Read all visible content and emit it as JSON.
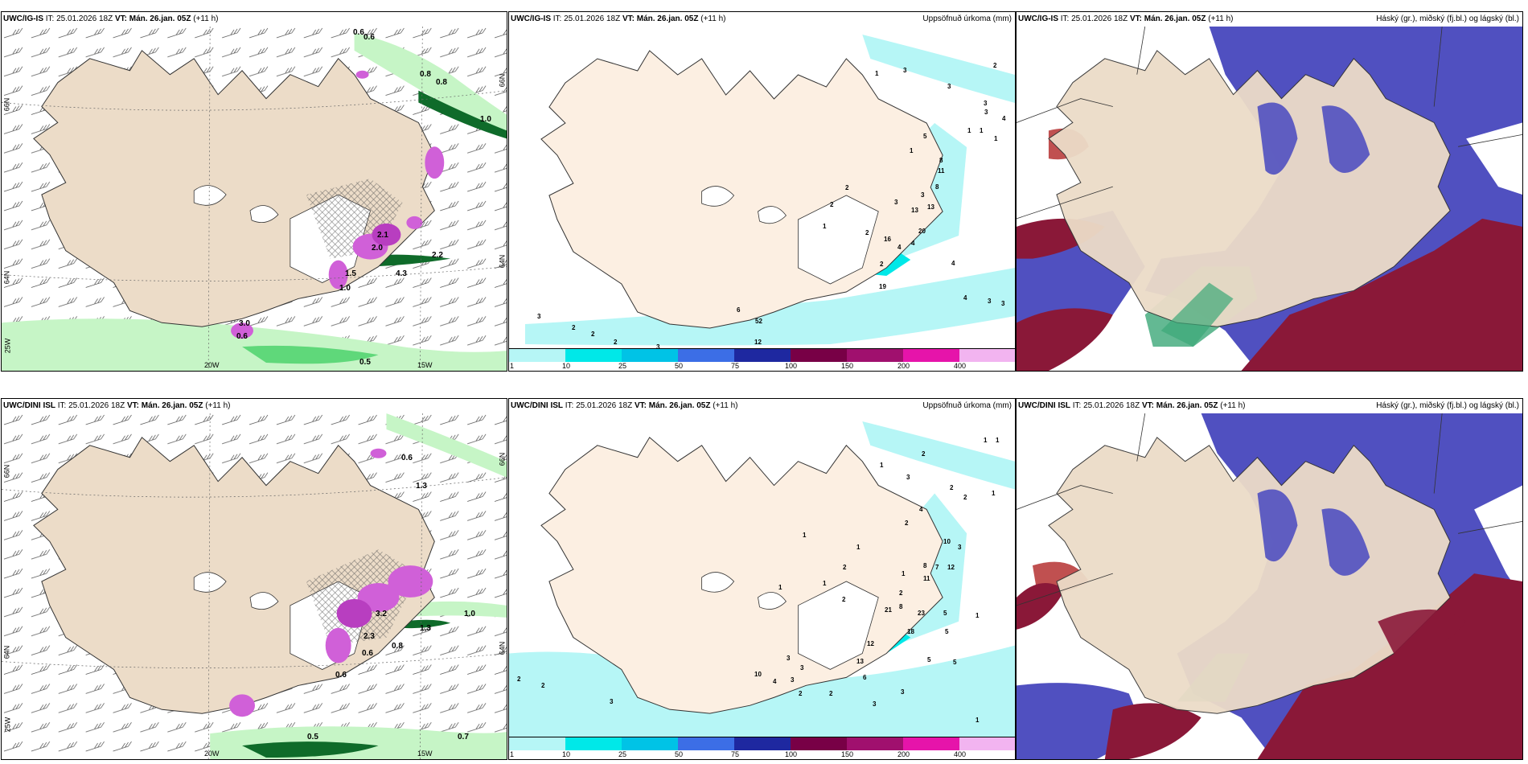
{
  "rows": [
    {
      "model": "UWC/IG-IS",
      "it_label": "IT:",
      "it_value": "25.01.2026 18Z",
      "vt_label": "VT:",
      "vt_value": "Mán. 26.jan. 05Z",
      "lead": "(+11 h)",
      "wind_panel": {
        "lon_labels": [
          "20W",
          "15W"
        ],
        "lat_labels": [
          "66N",
          "64N",
          "25W",
          "66N",
          "64N"
        ],
        "contour_labels": [
          "0.6",
          "0.6",
          "0.8",
          "0.8",
          "1.0",
          "2.1",
          "2.0",
          "4.3",
          "2.2",
          "1.0",
          "1.5",
          "3.0",
          "0.6",
          "0.5"
        ]
      },
      "precip_panel": {
        "title": "Uppsöfnuð úrkoma (mm)",
        "labels": [
          "1",
          "3",
          "3",
          "2",
          "3",
          "4",
          "3",
          "1",
          "1",
          "1",
          "5",
          "1",
          "8",
          "11",
          "2",
          "8",
          "3",
          "13",
          "13",
          "3",
          "20",
          "2",
          "1",
          "4",
          "2",
          "16",
          "4",
          "2",
          "19",
          "4",
          "3",
          "3",
          "4",
          "3",
          "2",
          "2",
          "2",
          "3",
          "6",
          "52",
          "12",
          "3"
        ]
      },
      "cloud_panel": {
        "title": "Háský (gr.), miðský (fj.bl.) og lágský (bl.)"
      }
    },
    {
      "model": "UWC/DINI ISL",
      "it_label": "IT:",
      "it_value": "25.01.2026 18Z",
      "vt_label": "VT:",
      "vt_value": "Mán. 26.jan. 05Z",
      "lead": "(+11 h)",
      "wind_panel": {
        "lon_labels": [
          "20W",
          "15W"
        ],
        "lat_labels": [
          "66N",
          "64N",
          "25W",
          "66N",
          "64N"
        ],
        "contour_labels": [
          "0.6",
          "1.3",
          "3.2",
          "2.3",
          "1.3",
          "0.8",
          "1.0",
          "0.6",
          "0.6",
          "0.5",
          "0.7"
        ]
      },
      "precip_panel": {
        "title": "Uppsöfnuð úrkoma (mm)",
        "labels": [
          "1",
          "1",
          "2",
          "1",
          "3",
          "2",
          "2",
          "1",
          "4",
          "2",
          "1",
          "10",
          "3",
          "1",
          "8",
          "7",
          "12",
          "1",
          "11",
          "2",
          "2",
          "21",
          "8",
          "23",
          "1",
          "5",
          "1",
          "2",
          "1",
          "5",
          "18",
          "12",
          "10",
          "13",
          "6",
          "5",
          "5",
          "2",
          "2",
          "3",
          "3",
          "3",
          "3",
          "2",
          "2",
          "3",
          "3",
          "4",
          "1"
        ]
      },
      "cloud_panel": {
        "title": "Háský (gr.), miðský (fj.bl.) og lágský (bl.)"
      }
    }
  ],
  "colorbar": {
    "ticks": [
      "1",
      "10",
      "25",
      "50",
      "75",
      "100",
      "150",
      "200",
      "400"
    ],
    "colors": [
      "#b6f6f6",
      "#00e8e8",
      "#00c3e6",
      "#3c6ee6",
      "#1e28a0",
      "#780046",
      "#a0106e",
      "#e614aa",
      "#f2b4f0"
    ]
  },
  "colors": {
    "land": "#ecdcc8",
    "land_precip": "#fcefe2",
    "sea": "#ffffff",
    "green_light": "#c6f5c6",
    "green_mid": "#5fd87a",
    "green_dark": "#0f6b2a",
    "purple": "#d060d8",
    "cloud_mid": "#5050c0",
    "cloud_low": "#8a1838",
    "cloud_high": "#3ca878",
    "cyan_light": "#b6f6f6"
  }
}
